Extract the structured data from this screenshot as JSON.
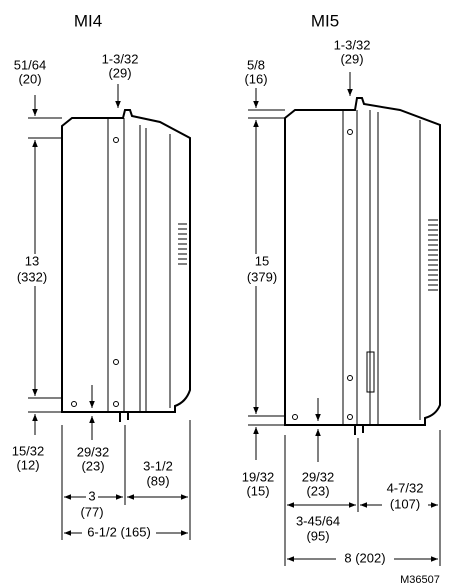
{
  "drawings": [
    {
      "title": "MI4",
      "top_offset": {
        "inch": "51/64",
        "mm": "(20)"
      },
      "rear_top": {
        "inch": "1-3/32",
        "mm": "(29)"
      },
      "height": {
        "inch": "13",
        "mm": "(332)"
      },
      "bottom_offset": {
        "inch": "15/32",
        "mm": "(12)"
      },
      "rear_bottom": {
        "inch": "29/32",
        "mm": "(23)"
      },
      "front_depth": {
        "inch": "3-1/2",
        "mm": "(89)"
      },
      "rear_depth": {
        "inch": "3",
        "mm": "(77)"
      },
      "total_depth": "6-1/2 (165)"
    },
    {
      "title": "MI5",
      "top_offset": {
        "inch": "5/8",
        "mm": "(16)"
      },
      "rear_top": {
        "inch": "1-3/32",
        "mm": "(29)"
      },
      "height": {
        "inch": "15",
        "mm": "(379)"
      },
      "bottom_offset": {
        "inch": "19/32",
        "mm": "(15)"
      },
      "rear_bottom": {
        "inch": "29/32",
        "mm": "(23)"
      },
      "front_depth": {
        "inch": "4-7/32",
        "mm": "(107)"
      },
      "rear_depth": {
        "inch": "3-45/64",
        "mm": "(95)"
      },
      "total_depth": "8 (202)"
    }
  ],
  "code": "M36507"
}
